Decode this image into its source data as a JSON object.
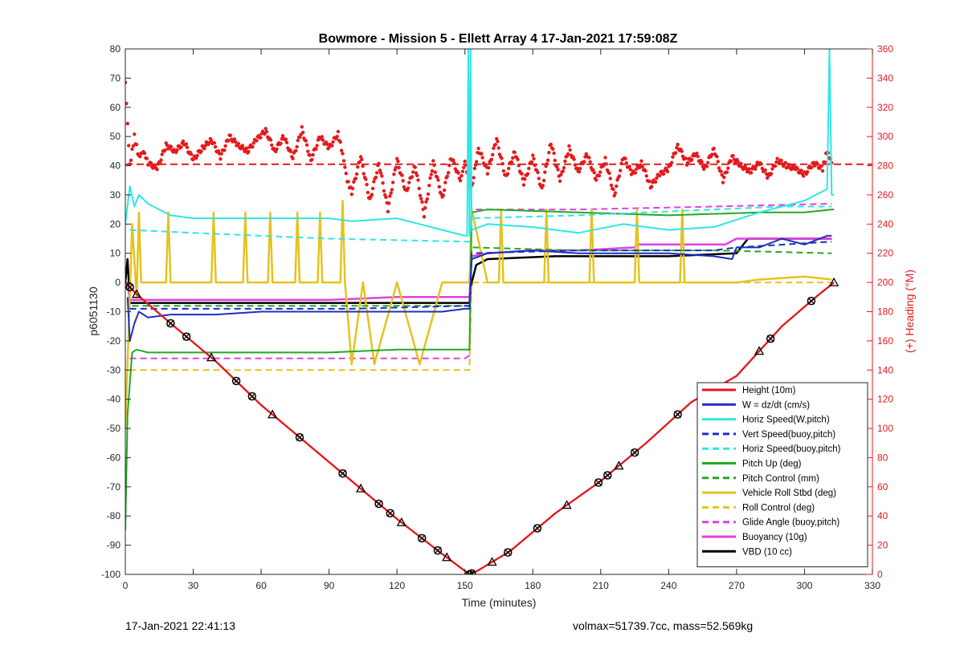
{
  "footer": {
    "timestamp": "17-Jan-2021 22:41:13",
    "stats": "volmax=51739.7cc, mass=52.569kg"
  },
  "chart_data": {
    "type": "line",
    "title": "Bowmore - Mission 5 - Ellett Array 4 17-Jan-2021 17:59:08Z",
    "xlabel": "Time (minutes)",
    "ylabel": "p6051130",
    "ylabel_right": "(+) Heading (°M)",
    "xlim": [
      0,
      330
    ],
    "ylim": [
      -100,
      80
    ],
    "ylim_right": [
      0,
      360
    ],
    "xticks": [
      0,
      30,
      60,
      90,
      120,
      150,
      180,
      210,
      240,
      270,
      300,
      330
    ],
    "yticks": [
      -100,
      -90,
      -80,
      -70,
      -60,
      -50,
      -40,
      -30,
      -20,
      -10,
      0,
      10,
      20,
      30,
      40,
      50,
      60,
      70,
      80
    ],
    "yticks_right": [
      0,
      20,
      40,
      60,
      80,
      100,
      120,
      140,
      160,
      180,
      200,
      220,
      240,
      260,
      280,
      300,
      320,
      340,
      360
    ],
    "grid": false,
    "legend_position": "bottom-right",
    "legend": [
      {
        "label": "Height (10m)",
        "color": "#e41a1c",
        "style": "solid"
      },
      {
        "label": "W = dz/dt (cm/s)",
        "color": "#1f2fbf",
        "style": "solid"
      },
      {
        "label": "Horiz Speed(W,pitch)",
        "color": "#2fe6e6",
        "style": "solid"
      },
      {
        "label": "Vert Speed(buoy,pitch)",
        "color": "#1f2fbf",
        "style": "dashed"
      },
      {
        "label": "Horiz Speed(buoy,pitch)",
        "color": "#2fe6e6",
        "style": "dashed"
      },
      {
        "label": "Pitch Up (deg)",
        "color": "#22aa22",
        "style": "solid"
      },
      {
        "label": "Pitch Control (mm)",
        "color": "#22aa22",
        "style": "dashed"
      },
      {
        "label": "Vehicle Roll Stbd (deg)",
        "color": "#e6c21f",
        "style": "solid"
      },
      {
        "label": "Roll Control (deg)",
        "color": "#e6c21f",
        "style": "dashed"
      },
      {
        "label": "Glide Angle (buoy,pitch)",
        "color": "#e040e0",
        "style": "dashed"
      },
      {
        "label": "Buoyancy (10g)",
        "color": "#e040e0",
        "style": "solid"
      },
      {
        "label": "VBD (10 cc)",
        "color": "#000000",
        "style": "solid"
      }
    ],
    "series": [
      {
        "name": "Height (10m)",
        "color": "#e41a1c",
        "dash": "",
        "width": 2.2,
        "x": [
          0,
          5,
          20,
          40,
          60,
          80,
          100,
          120,
          140,
          152,
          155,
          170,
          190,
          210,
          230,
          250,
          270,
          290,
          305,
          313
        ],
        "y": [
          0,
          -4,
          -14,
          -27,
          -42,
          -55,
          -68,
          -81,
          -93,
          -100,
          -99,
          -92,
          -79,
          -68,
          -55,
          -41,
          -32,
          -15,
          -5,
          0
        ]
      },
      {
        "name": "W = dz/dt (cm/s)",
        "color": "#1f2fbf",
        "dash": "",
        "width": 2,
        "x": [
          1,
          2,
          4,
          6,
          10,
          20,
          40,
          60,
          80,
          100,
          120,
          140,
          150,
          152,
          153,
          160,
          180,
          200,
          220,
          240,
          260,
          268,
          270,
          280,
          290,
          300,
          310,
          312
        ],
        "y": [
          -5,
          -20,
          -14,
          -10,
          -12,
          -11,
          -11,
          -10,
          -10,
          -10,
          -10,
          -10,
          -9,
          -9,
          8,
          10,
          11,
          10,
          10,
          10,
          9,
          8,
          12,
          12,
          15,
          13,
          16,
          16
        ]
      },
      {
        "name": "Vert Speed(buoy,pitch)",
        "color": "#1f2fbf",
        "dash": "8,5",
        "width": 2,
        "x": [
          2,
          20,
          60,
          100,
          150,
          152,
          153,
          200,
          260,
          270,
          312
        ],
        "y": [
          -9,
          -9,
          -9,
          -9,
          -8,
          -8,
          10,
          11,
          11,
          12,
          14
        ]
      },
      {
        "name": "Horiz Speed(W,pitch)",
        "color": "#2fe6e6",
        "dash": "",
        "width": 2,
        "x": [
          0,
          2,
          4,
          6,
          10,
          20,
          30,
          60,
          90,
          100,
          120,
          140,
          150,
          151,
          151.5,
          152,
          152.5,
          153,
          160,
          180,
          200,
          220,
          240,
          260,
          280,
          300,
          310,
          311,
          312,
          313
        ],
        "y": [
          20,
          33,
          26,
          30,
          27,
          23,
          22,
          22,
          22,
          21,
          22,
          18,
          16,
          16,
          80,
          16,
          80,
          18,
          20,
          19,
          17,
          20,
          18,
          19,
          24,
          28,
          32,
          80,
          30,
          30
        ]
      },
      {
        "name": "Horiz Speed(buoy,pitch)",
        "color": "#2fe6e6",
        "dash": "8,5",
        "width": 2,
        "x": [
          2,
          30,
          90,
          150,
          152,
          153,
          200,
          260,
          290,
          312
        ],
        "y": [
          18,
          17,
          15,
          14,
          14,
          22,
          23,
          25,
          26,
          26
        ]
      },
      {
        "name": "Pitch Up (deg)",
        "color": "#22aa22",
        "dash": "",
        "width": 2,
        "x": [
          0,
          1,
          3,
          5,
          10,
          30,
          60,
          90,
          120,
          150,
          152,
          153,
          160,
          200,
          240,
          280,
          300,
          312,
          313
        ],
        "y": [
          -85,
          -45,
          -24,
          -23,
          -24,
          -24,
          -24,
          -24,
          -23,
          -23,
          -23,
          24,
          25,
          24,
          23,
          24,
          24,
          25,
          25
        ]
      },
      {
        "name": "Pitch Control (mm)",
        "color": "#22aa22",
        "dash": "8,5",
        "width": 2,
        "x": [
          3,
          30,
          90,
          150,
          152,
          153,
          200,
          260,
          312
        ],
        "y": [
          -8,
          -8,
          -8,
          -8,
          -8,
          12,
          11,
          11,
          10
        ]
      },
      {
        "name": "Vehicle Roll Stbd (deg)",
        "color": "#e6c21f",
        "dash": "",
        "width": 2.5,
        "x": [
          0,
          2,
          3,
          5,
          6,
          7,
          15,
          18,
          19,
          20,
          30,
          38,
          39,
          40,
          50,
          52,
          53,
          54,
          63,
          64,
          65,
          75,
          76,
          77,
          85,
          86,
          87,
          95,
          96,
          97,
          100,
          105,
          110,
          120,
          130,
          140,
          150,
          152,
          153,
          160,
          165,
          166,
          167,
          180,
          185,
          186,
          187,
          200,
          205,
          206,
          207,
          220,
          225,
          226,
          227,
          245,
          246,
          247,
          270,
          280,
          300,
          312
        ],
        "y": [
          -50,
          -5,
          20,
          -5,
          24,
          0,
          0,
          0,
          24,
          0,
          0,
          0,
          24,
          0,
          0,
          0,
          24,
          0,
          0,
          24,
          0,
          0,
          24,
          0,
          0,
          24,
          0,
          0,
          28,
          0,
          -28,
          0,
          -28,
          0,
          -28,
          0,
          0,
          0,
          25,
          0,
          0,
          25,
          0,
          0,
          0,
          25,
          0,
          0,
          0,
          25,
          0,
          0,
          0,
          25,
          0,
          0,
          25,
          0,
          0,
          1,
          2,
          1
        ]
      },
      {
        "name": "Roll Control (deg)",
        "color": "#e6c21f",
        "dash": "8,5",
        "width": 2,
        "x": [
          2,
          100,
          101,
          150,
          152,
          153,
          312
        ],
        "y": [
          -30,
          -30,
          -30,
          -30,
          -30,
          0,
          0
        ]
      },
      {
        "name": "Glide Angle (buoy,pitch)",
        "color": "#e040e0",
        "dash": "8,5",
        "width": 2,
        "x": [
          2,
          30,
          90,
          150,
          152,
          153,
          200,
          260,
          312
        ],
        "y": [
          -26,
          -26,
          -26,
          -26,
          -25,
          25,
          25,
          26,
          27
        ]
      },
      {
        "name": "Buoyancy (10g)",
        "color": "#e040e0",
        "dash": "",
        "width": 2.5,
        "x": [
          1,
          2,
          30,
          60,
          90,
          120,
          150,
          152,
          153,
          160,
          180,
          200,
          225,
          226,
          265,
          270,
          312
        ],
        "y": [
          0,
          -6,
          -6,
          -6,
          -6,
          -5,
          -5,
          -5,
          9,
          10,
          11,
          11,
          12,
          13,
          13,
          15,
          15
        ]
      },
      {
        "name": "VBD (10 cc)",
        "color": "#000000",
        "dash": "",
        "width": 2.5,
        "x": [
          0,
          1,
          2,
          60,
          120,
          150,
          152,
          153,
          155,
          160,
          190,
          240,
          270,
          275,
          312
        ],
        "y": [
          0,
          8,
          -7,
          -7,
          -7,
          -7,
          -7,
          0,
          6,
          8,
          9,
          9,
          10,
          15,
          15
        ]
      }
    ],
    "heading": {
      "name": "(+) Heading (°M)",
      "axis": "right",
      "color": "#e41a1c",
      "dashed_reference": 281,
      "x": [
        0,
        2,
        4,
        6,
        8,
        10,
        14,
        18,
        22,
        26,
        30,
        34,
        38,
        42,
        46,
        50,
        54,
        58,
        62,
        66,
        70,
        74,
        78,
        82,
        86,
        90,
        94,
        96,
        98,
        100,
        104,
        108,
        112,
        116,
        120,
        124,
        128,
        132,
        136,
        140,
        144,
        148,
        150,
        153,
        156,
        160,
        164,
        168,
        172,
        176,
        180,
        184,
        188,
        192,
        196,
        200,
        204,
        208,
        212,
        216,
        220,
        224,
        228,
        232,
        236,
        240,
        244,
        248,
        252,
        256,
        260,
        264,
        268,
        272,
        276,
        280,
        284,
        288,
        292,
        296,
        300,
        304,
        308,
        310,
        312
      ],
      "y": [
        337,
        280,
        300,
        286,
        290,
        282,
        278,
        294,
        290,
        296,
        284,
        292,
        298,
        286,
        300,
        294,
        290,
        298,
        304,
        290,
        300,
        285,
        305,
        284,
        300,
        292,
        302,
        288,
        270,
        262,
        286,
        256,
        282,
        250,
        284,
        262,
        280,
        246,
        282,
        258,
        286,
        270,
        282,
        265,
        292,
        276,
        298,
        272,
        290,
        268,
        286,
        264,
        296,
        270,
        292,
        276,
        288,
        270,
        284,
        260,
        286,
        274,
        282,
        266,
        274,
        278,
        294,
        282,
        288,
        278,
        292,
        270,
        286,
        280,
        276,
        282,
        272,
        284,
        280,
        278,
        274,
        282,
        278,
        290,
        282
      ]
    },
    "markers": {
      "series": "Height (10m)",
      "x": [
        2,
        5,
        20,
        27,
        38,
        49,
        56,
        65,
        77,
        96,
        104,
        112,
        117,
        122,
        131,
        138,
        142,
        152,
        153,
        162,
        169,
        182,
        195,
        209,
        213,
        218,
        225,
        244,
        280,
        285,
        303,
        313
      ]
    }
  }
}
